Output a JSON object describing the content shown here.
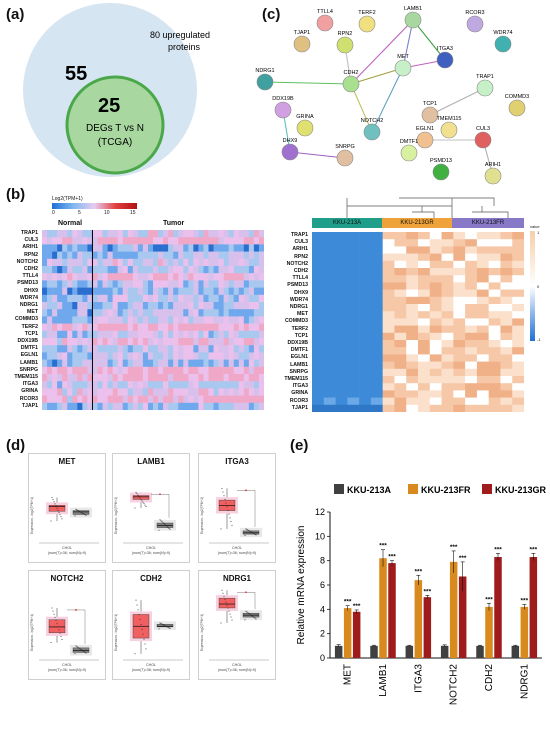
{
  "panels": {
    "a": "(a)",
    "b": "(b)",
    "c": "(c)",
    "d": "(d)",
    "e": "(e)"
  },
  "venn": {
    "outer_count": "55",
    "outer_label": "80 upregulated proteins",
    "inner_count": "25",
    "inner_line1": "DEGs T vs N",
    "inner_line2": "(TCGA)"
  },
  "network": {
    "nodes": [
      "LAMB1",
      "TTLL4",
      "TERF2",
      "RCOR3",
      "TJAP1",
      "RPN2",
      "WDR74",
      "ITGA3",
      "MET",
      "NDRG1",
      "CDH2",
      "TRAP1",
      "COMMD3",
      "TCP1",
      "DDX19B",
      "TMEM115",
      "EGLN1",
      "CUL3",
      "GRINA",
      "NOTCH2",
      "DMTF1",
      "DHX9",
      "SNRPG",
      "PSMD13",
      "ARIH1"
    ]
  },
  "heatmap_left": {
    "legend_title": "Log2(TPM+1)",
    "legend_ticks": [
      "0",
      "5",
      "10",
      "15"
    ],
    "group_normal": "Normal",
    "group_tumor": "Tumor",
    "genes": [
      "TRAP1",
      "CUL3",
      "ARIH1",
      "RPN2",
      "NOTCH2",
      "CDH2",
      "TTLL4",
      "PSMD13",
      "DHX9",
      "WDR74",
      "NDRG1",
      "MET",
      "COMMD3",
      "TERF2",
      "TCP1",
      "DDX19B",
      "DMTF1",
      "EGLN1",
      "LAMB1",
      "SNRPG",
      "TMEM115",
      "ITGA3",
      "GRINA",
      "RCOR3",
      "TJAP1"
    ]
  },
  "heatmap_right": {
    "groups": [
      "KKU-213A",
      "KKU-213GR",
      "KKU-213FR"
    ],
    "legend_title": "value",
    "legend_ticks": [
      "1",
      "0",
      "-1"
    ],
    "genes": [
      "TRAP1",
      "CUL3",
      "ARIH1",
      "RPN2",
      "NOTCH2",
      "CDH2",
      "TTLL4",
      "PSMD13",
      "DHX9",
      "WDR74",
      "NDRG1",
      "MET",
      "COMMD3",
      "TERF2",
      "TCP1",
      "DDX19B",
      "DMTF1",
      "EGLN1",
      "LAMB1",
      "SNRPG",
      "TMEM115",
      "ITGA3",
      "GRINA",
      "RCOR3",
      "TJAP1"
    ]
  },
  "boxplots": {
    "ylabel": "Expression - log2(TPM+1)",
    "xlabel": "CHOL",
    "footnote": "(num(T)=36; num(N)=9)",
    "plots": [
      {
        "title": "MET",
        "sig": false,
        "tumor": [
          5.4,
          4.7,
          5.6,
          3.2,
          6.8
        ],
        "normal": [
          4.6,
          4.2,
          4.8,
          4.0,
          5.0
        ]
      },
      {
        "title": "LAMB1",
        "sig": true,
        "tumor": [
          6.9,
          6.5,
          7.1,
          5.2,
          7.6
        ],
        "normal": [
          2.5,
          2.2,
          2.9,
          1.8,
          3.4
        ]
      },
      {
        "title": "ITGA3",
        "sig": true,
        "tumor": [
          5.6,
          4.8,
          6.4,
          2.0,
          8.2
        ],
        "normal": [
          1.4,
          1.2,
          1.7,
          1.0,
          2.0
        ]
      },
      {
        "title": "NOTCH2",
        "sig": true,
        "tumor": [
          4.9,
          4.0,
          6.0,
          2.5,
          7.8
        ],
        "normal": [
          1.3,
          1.0,
          1.7,
          0.8,
          2.0
        ]
      },
      {
        "title": "CDH2",
        "sig": false,
        "tumor": [
          5.0,
          3.2,
          6.8,
          0.8,
          9.0
        ],
        "normal": [
          5.0,
          4.9,
          5.3,
          4.6,
          5.5
        ]
      },
      {
        "title": "NDRG1",
        "sig": true,
        "tumor": [
          8.4,
          7.8,
          9.3,
          5.5,
          10.5
        ],
        "normal": [
          6.7,
          6.4,
          7.0,
          6.0,
          7.3
        ]
      }
    ]
  },
  "chart_data": {
    "type": "bar",
    "categories": [
      "MET",
      "LAMB1",
      "ITGA3",
      "NOTCH2",
      "CDH2",
      "NDRG1"
    ],
    "series": [
      {
        "name": "KKU-213A",
        "values": [
          1.0,
          1.0,
          1.0,
          1.0,
          1.0,
          1.0
        ],
        "errors": [
          0.1,
          0.05,
          0.05,
          0.08,
          0.05,
          0.05
        ],
        "sig": [
          "",
          "",
          "",
          "",
          "",
          ""
        ],
        "color": "#404040"
      },
      {
        "name": "KKU-213FR",
        "values": [
          4.1,
          8.2,
          6.4,
          7.9,
          4.2,
          4.2
        ],
        "errors": [
          0.2,
          0.7,
          0.4,
          0.9,
          0.3,
          0.2
        ],
        "sig": [
          "***",
          "***",
          "***",
          "***",
          "***",
          "***"
        ],
        "color": "#d98a1f"
      },
      {
        "name": "KKU-213GR",
        "values": [
          3.8,
          7.8,
          5.0,
          6.7,
          8.3,
          8.3
        ],
        "errors": [
          0.15,
          0.2,
          0.15,
          1.2,
          0.3,
          0.3
        ],
        "sig": [
          "***",
          "***",
          "***",
          "***",
          "***",
          "***"
        ],
        "color": "#a01c1c"
      }
    ],
    "ylabel": "Relative mRNA expression",
    "ylim": [
      0,
      12
    ],
    "yticks": [
      "0",
      "2",
      "4",
      "6",
      "8",
      "10",
      "12"
    ],
    "legend_position": "top"
  }
}
